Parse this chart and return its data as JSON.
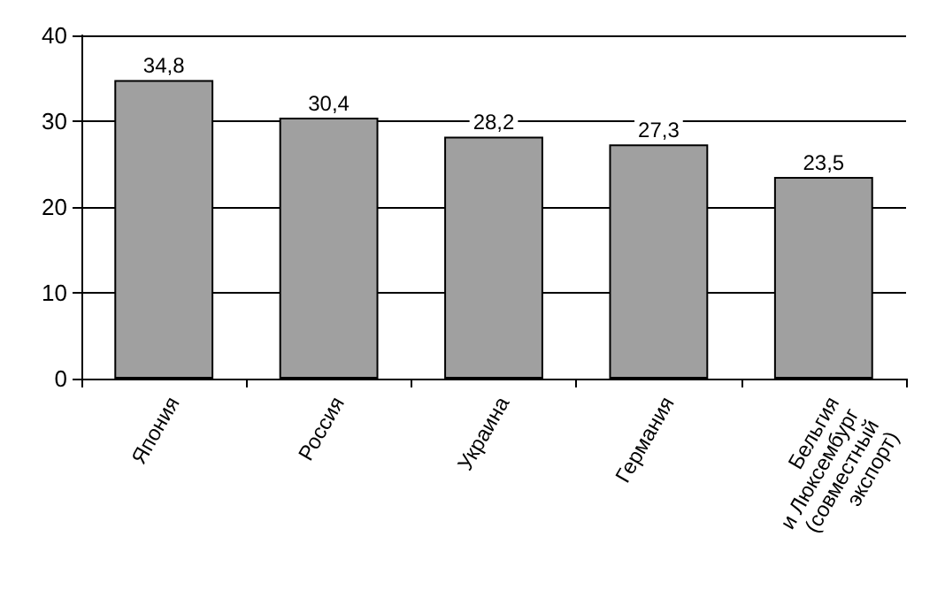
{
  "chart_data": {
    "type": "bar",
    "categories": [
      "Япония",
      "Россия",
      "Украина",
      "Германия",
      "Бельгия\nи Люксембург\n(совместный\nэкспорт)"
    ],
    "values": [
      34.8,
      30.4,
      28.2,
      27.3,
      23.5
    ],
    "value_labels": [
      "34,8",
      "30,4",
      "28,2",
      "27,3",
      "23,5"
    ],
    "color": "#a0a0a0",
    "ylim": [
      0,
      40
    ],
    "yticks": [
      0,
      10,
      20,
      30,
      40
    ],
    "grid": true
  }
}
